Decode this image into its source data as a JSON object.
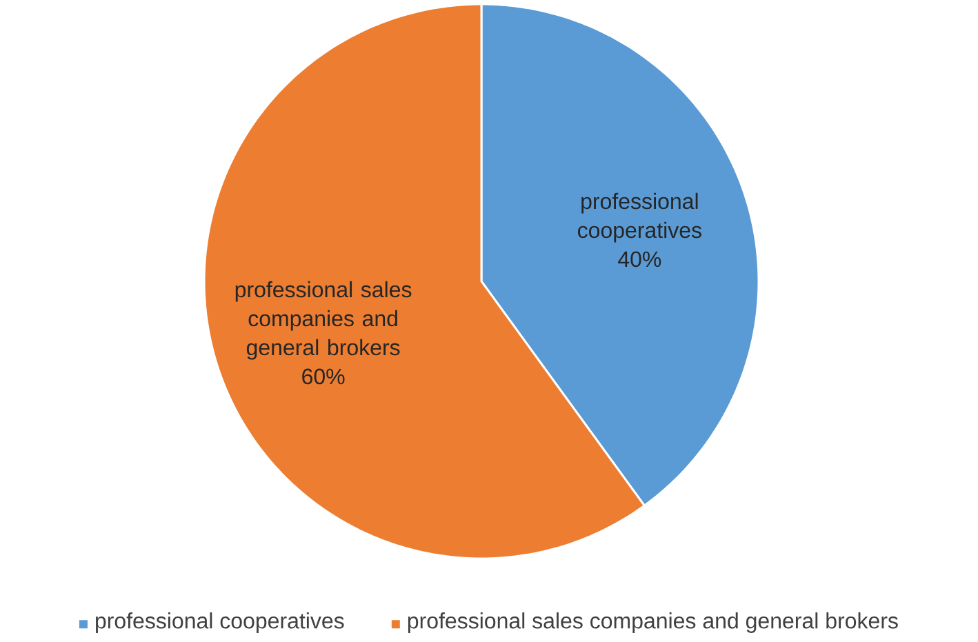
{
  "chart_data": {
    "type": "pie",
    "categories": [
      "professional cooperatives",
      "professional sales companies and general brokers"
    ],
    "values": [
      40,
      60
    ],
    "colors": [
      "#5b9bd5",
      "#ed7d31"
    ],
    "value_labels": [
      "40%",
      "60%"
    ],
    "legend": "bottom"
  }
}
